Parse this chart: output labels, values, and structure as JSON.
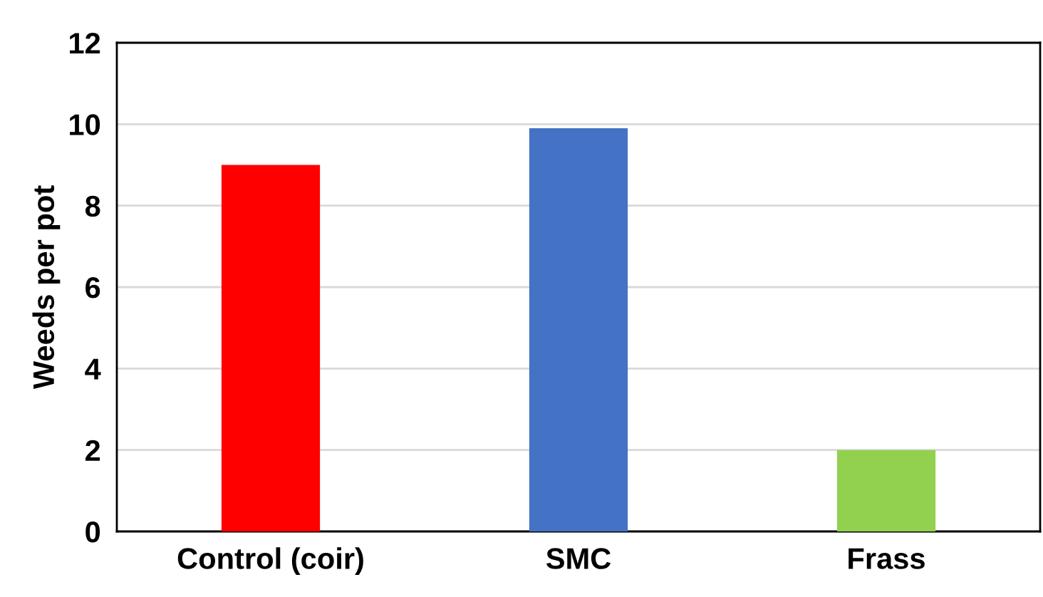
{
  "chart_data": {
    "type": "bar",
    "ylabel": "Weeds per pot",
    "categories": [
      "Control (coir)",
      "SMC",
      "Frass"
    ],
    "values": [
      9.0,
      9.9,
      2.0
    ],
    "colors": [
      "#ff0000",
      "#4472c4",
      "#92d050"
    ],
    "ylim": [
      0,
      12
    ],
    "yticks": [
      0,
      2,
      4,
      6,
      8,
      10,
      12
    ],
    "grid": "y",
    "legend": false
  }
}
